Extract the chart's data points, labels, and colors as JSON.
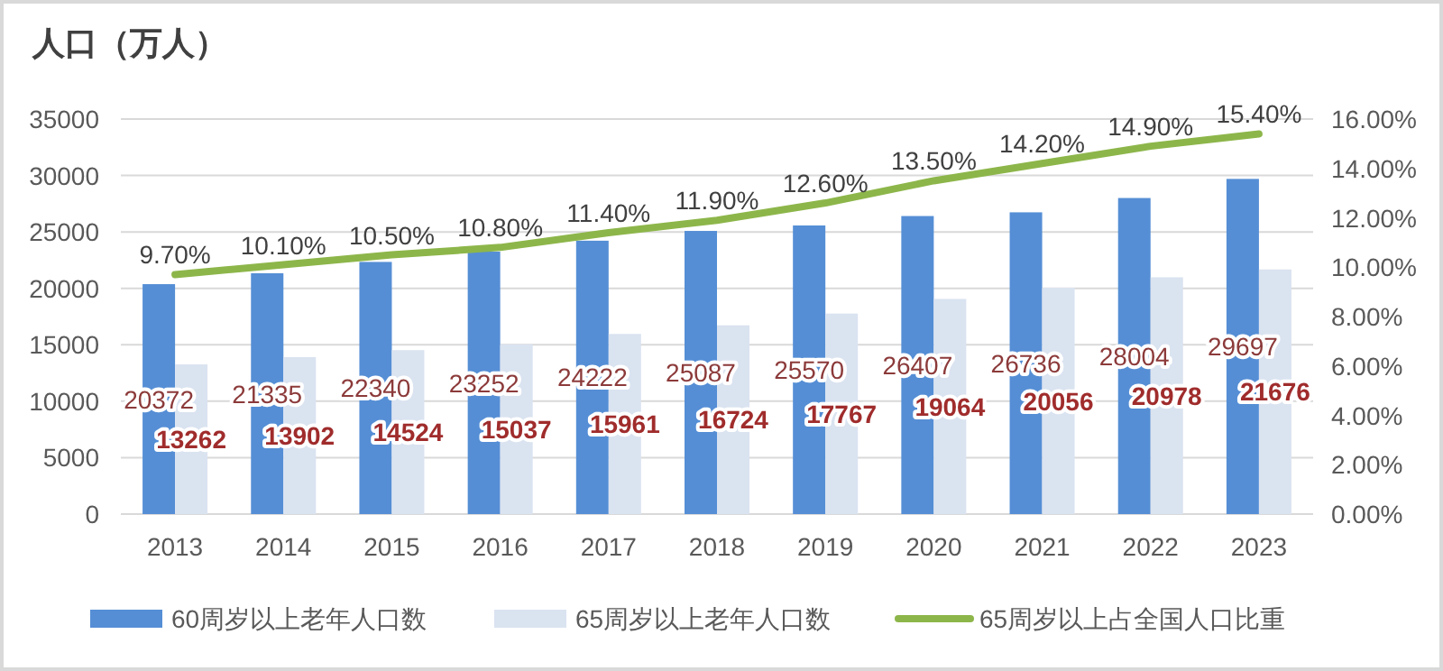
{
  "chart_data": {
    "type": "bar",
    "ylabel": "人口（万人）",
    "categories": [
      "2013",
      "2014",
      "2015",
      "2016",
      "2017",
      "2018",
      "2019",
      "2020",
      "2021",
      "2022",
      "2023"
    ],
    "series": [
      {
        "name": "60周岁以上老年人口数",
        "color": "#558ed5",
        "values": [
          20372,
          21335,
          22340,
          23252,
          24222,
          25087,
          25570,
          26407,
          26736,
          28004,
          29697
        ],
        "value_labels": [
          "20372",
          "21335",
          "22340",
          "23252",
          "24222",
          "25087",
          "25570",
          "26407",
          "26736",
          "28004",
          "29697"
        ]
      },
      {
        "name": "65周岁以上老年人口数",
        "color": "#dae3f0",
        "values": [
          13262,
          13902,
          14524,
          15037,
          15961,
          16724,
          17767,
          19064,
          20056,
          20978,
          21676
        ],
        "value_labels": [
          "13262",
          "13902",
          "14524",
          "15037",
          "15961",
          "16724",
          "17767",
          "19064",
          "20056",
          "20978",
          "21676"
        ]
      },
      {
        "name": "65周岁以上占全国人口比重",
        "type": "line",
        "axis": "y2",
        "color": "#8db64a",
        "values": [
          9.7,
          10.1,
          10.5,
          10.8,
          11.4,
          11.9,
          12.6,
          13.5,
          14.2,
          14.9,
          15.4
        ],
        "value_labels": [
          "9.70%",
          "10.10%",
          "10.50%",
          "10.80%",
          "11.40%",
          "11.90%",
          "12.60%",
          "13.50%",
          "14.20%",
          "14.90%",
          "15.40%"
        ]
      }
    ],
    "ylim": [
      0,
      35000
    ],
    "yticks": [
      0,
      5000,
      10000,
      15000,
      20000,
      25000,
      30000,
      35000
    ],
    "y2lim": [
      0,
      16
    ],
    "y2ticks": [
      {
        "value": 0,
        "label": "0.00%"
      },
      {
        "value": 2,
        "label": "2.00%"
      },
      {
        "value": 4,
        "label": "4.00%"
      },
      {
        "value": 6,
        "label": "6.00%"
      },
      {
        "value": 8,
        "label": "8.00%"
      },
      {
        "value": 10,
        "label": "10.00%"
      },
      {
        "value": 12,
        "label": "12.00%"
      },
      {
        "value": 14,
        "label": "14.00%"
      },
      {
        "value": 16,
        "label": "16.00%"
      }
    ],
    "grid": "y",
    "legend": "bottom"
  }
}
